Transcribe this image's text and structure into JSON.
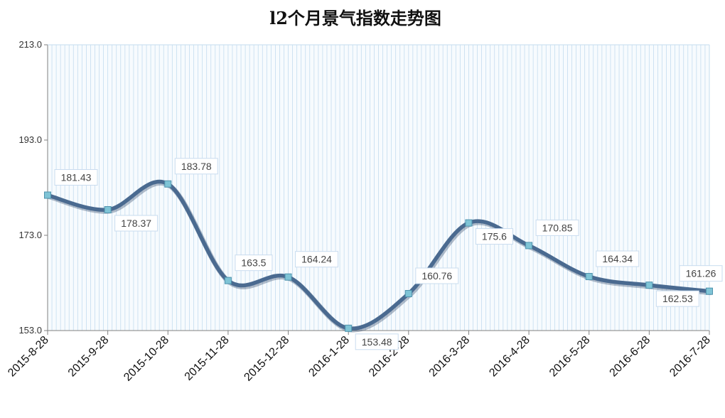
{
  "chart_data": {
    "type": "line",
    "title": "l2个月景气指数走势图",
    "categories": [
      "2015-8-28",
      "2015-9-28",
      "2015-10-28",
      "2015-11-28",
      "2015-12-28",
      "2016-1-28",
      "2016-2-28",
      "2016-3-28",
      "2016-4-28",
      "2016-5-28",
      "2016-6-28",
      "2016-7-28"
    ],
    "series": [
      {
        "values": [
          181.43,
          178.37,
          183.78,
          163.5,
          164.24,
          153.48,
          160.76,
          175.6,
          170.85,
          164.34,
          162.53,
          161.26
        ],
        "labels": [
          "181.43",
          "178.37",
          "183.78",
          "163.5",
          "164.24",
          "153.48",
          "160.76",
          "175.6",
          "170.85",
          "164.34",
          "162.53",
          "161.26"
        ],
        "label_side": [
          "above",
          "below",
          "above",
          "above",
          "above",
          "below",
          "above",
          "below",
          "above",
          "above",
          "below",
          "above"
        ]
      }
    ],
    "yticks": [
      "153.0",
      "173.0",
      "193.0",
      "213.0"
    ],
    "ylim": [
      153,
      213
    ],
    "xlabel": "",
    "ylabel": "",
    "grid": "vertical-minor",
    "legend": "none",
    "line_color": "#4a6a90",
    "marker_color": "#7fc4d6",
    "grid_color": "#c4dcef"
  }
}
